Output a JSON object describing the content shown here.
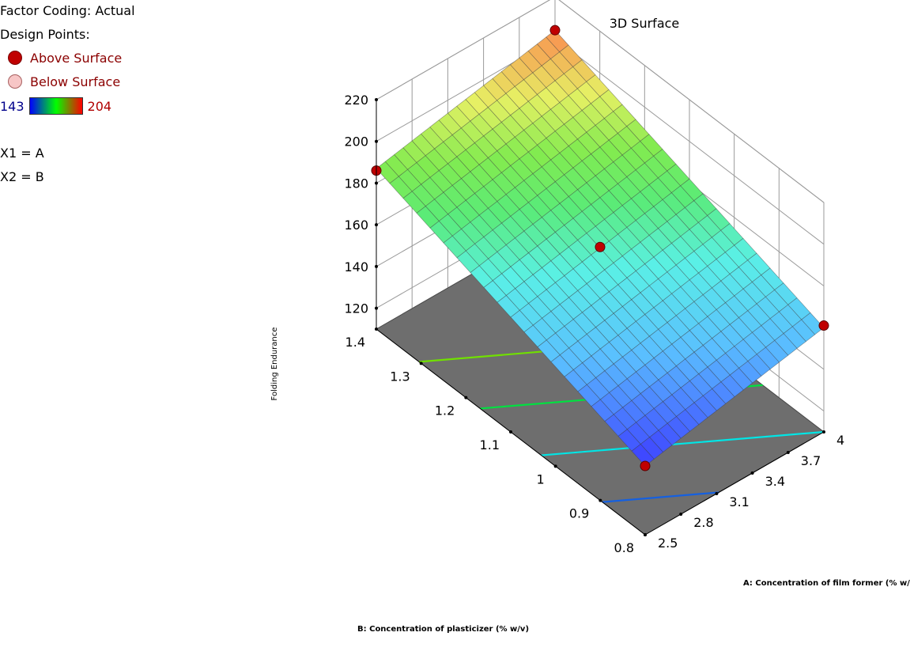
{
  "legend": {
    "factor_coding": "Factor Coding: Actual",
    "design_points_title": "Design Points:",
    "above_label": "Above Surface",
    "below_label": "Below Surface",
    "gradient_min": "143",
    "gradient_max": "204",
    "x1_line": "X1 = A",
    "x2_line": "X2 = B"
  },
  "colors": {
    "above_point": "#c00000",
    "below_point": "#f7c6c6",
    "floor": "#6e6e6e",
    "gradient_low": "#0000ff",
    "gradient_mid": "#00ff00",
    "gradient_high": "#ff0000"
  },
  "chart_data": {
    "type": "surface3d",
    "title": "3D Surface",
    "zlabel": "Folding Endurance",
    "xlabel": "A: Concentration of film former (% w/v)",
    "ylabel": "B: Concentration of plasticizer (% w/v)",
    "x_ticks": [
      "2.5",
      "2.8",
      "3.1",
      "3.4",
      "3.7",
      "4"
    ],
    "y_ticks": [
      "0.8",
      "0.9",
      "1",
      "1.1",
      "1.2",
      "1.3",
      "1.4"
    ],
    "z_ticks": [
      "120",
      "140",
      "160",
      "180",
      "200",
      "220"
    ],
    "xlim": [
      2.5,
      4
    ],
    "ylim": [
      0.8,
      1.4
    ],
    "zlim": [
      110,
      220
    ],
    "color_range": [
      143,
      204
    ],
    "surface_model": {
      "intercept_at_min": 143,
      "slope_A_per_unit": 11.33,
      "slope_B_per_unit": 73.33,
      "description": "planar response surface"
    },
    "design_points": [
      {
        "A": 2.5,
        "B": 0.8,
        "folding_endurance": 143,
        "position": "above"
      },
      {
        "A": 4,
        "B": 0.8,
        "folding_endurance": 161,
        "position": "above"
      },
      {
        "A": 2.5,
        "B": 1.4,
        "folding_endurance": 186,
        "position": "above"
      },
      {
        "A": 4,
        "B": 1.4,
        "folding_endurance": 204,
        "position": "above"
      },
      {
        "A": 3.25,
        "B": 1.1,
        "folding_endurance": 174,
        "position": "above"
      }
    ],
    "floor_contours": [
      {
        "level": 150,
        "color": "#1560e0"
      },
      {
        "level": 160,
        "color": "#00e5e5"
      },
      {
        "level": 170,
        "color": "#00e040"
      },
      {
        "level": 180,
        "color": "#70e000"
      }
    ],
    "grid": true
  }
}
